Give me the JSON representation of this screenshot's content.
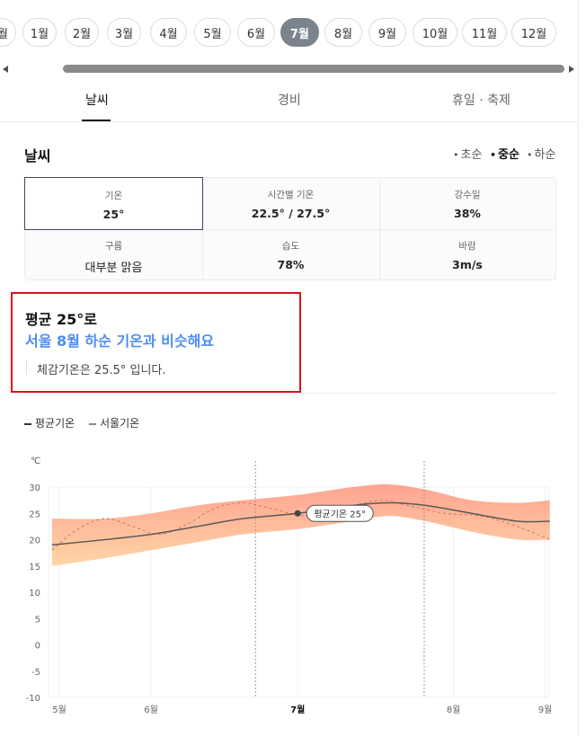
{
  "months": [
    {
      "label": "월",
      "partial": true
    },
    {
      "label": "1월"
    },
    {
      "label": "2월"
    },
    {
      "label": "3월"
    },
    {
      "label": "4월"
    },
    {
      "label": "5월"
    },
    {
      "label": "6월"
    },
    {
      "label": "7월",
      "active": true
    },
    {
      "label": "8월"
    },
    {
      "label": "9월"
    },
    {
      "label": "10월"
    },
    {
      "label": "11월"
    },
    {
      "label": "12월"
    }
  ],
  "tabs": [
    {
      "label": "날씨",
      "active": true
    },
    {
      "label": "경비"
    },
    {
      "label": "휴일 · 축제"
    }
  ],
  "weather": {
    "title": "날씨",
    "periods": [
      {
        "label": "초순"
      },
      {
        "label": "중순",
        "active": true
      },
      {
        "label": "하순"
      }
    ],
    "cells": [
      {
        "label": "기온",
        "value": "25°",
        "selected": true
      },
      {
        "label": "시간별 기온",
        "value": "22.5° / 27.5°"
      },
      {
        "label": "강수일",
        "value": "38%"
      },
      {
        "label": "구름",
        "value": "대부분 맑음"
      },
      {
        "label": "습도",
        "value": "78%"
      },
      {
        "label": "바람",
        "value": "3m/s"
      }
    ]
  },
  "highlight": {
    "line1": "평균 25°로",
    "line2": "서울 8월 하순 기온과 비슷해요",
    "feels": "체감기온은 25.5° 입니다."
  },
  "legend": {
    "avg": "평균기온",
    "seoul": "서울기온"
  },
  "colors": {
    "accent": "#4d8cf5",
    "highlight_border": "#e0111b",
    "band_top": "#ff9a86",
    "band_bottom": "#ffcf9b",
    "chip_active": "#7b848c"
  },
  "chart_data": {
    "type": "area",
    "ylabel": "℃",
    "ylim": [
      -10,
      30
    ],
    "yticks": [
      30,
      25,
      20,
      15,
      10,
      5,
      0,
      -5,
      -10
    ],
    "xticks": [
      {
        "label": "5월",
        "x": 0,
        "bold": false
      },
      {
        "label": "6월",
        "x": 1,
        "bold": false
      },
      {
        "label": "7월",
        "x": 2.6,
        "bold": true
      },
      {
        "label": "8월",
        "x": 4.3,
        "bold": false
      },
      {
        "label": "9월",
        "x": 5.3,
        "bold": false
      }
    ],
    "xlim": [
      -0.08,
      5.35
    ],
    "series": [
      {
        "name": "평균기온",
        "x": [
          -0.08,
          0.5,
          1.0,
          1.5,
          2.0,
          2.6,
          3.2,
          3.6,
          4.0,
          4.5,
          5.0,
          5.35
        ],
        "values": [
          19,
          20,
          21,
          22.5,
          24,
          25,
          26.5,
          27,
          26.5,
          25,
          23.5,
          23.5
        ]
      },
      {
        "name": "최고",
        "x": [
          -0.08,
          0.5,
          1.0,
          1.5,
          2.0,
          2.6,
          3.2,
          3.6,
          4.0,
          4.5,
          5.0,
          5.35
        ],
        "values": [
          24,
          24,
          25,
          26.5,
          27.5,
          28.5,
          30,
          30.5,
          29.5,
          27.5,
          27,
          27.5
        ]
      },
      {
        "name": "최저",
        "x": [
          -0.08,
          0.5,
          1.0,
          1.5,
          2.0,
          2.6,
          3.2,
          3.6,
          4.0,
          4.5,
          5.0,
          5.35
        ],
        "values": [
          15,
          16.5,
          18,
          19.5,
          21,
          22,
          23.5,
          24.5,
          23.5,
          21.5,
          20,
          20
        ]
      },
      {
        "name": "서울기온",
        "x": [
          -0.08,
          0.2,
          0.5,
          0.8,
          1.1,
          1.4,
          1.7,
          2.0,
          2.3,
          2.7,
          3.1,
          3.5,
          3.8,
          4.2,
          4.6,
          5.0,
          5.35
        ],
        "values": [
          18,
          22,
          24,
          22.5,
          21,
          23,
          26,
          27,
          26,
          24.5,
          26,
          27.5,
          26.5,
          25,
          24.5,
          22.5,
          20
        ]
      }
    ],
    "current": {
      "x": 2.6,
      "value": 25,
      "label": "평균기온 25°"
    },
    "guides": [
      2.14,
      3.98
    ]
  }
}
